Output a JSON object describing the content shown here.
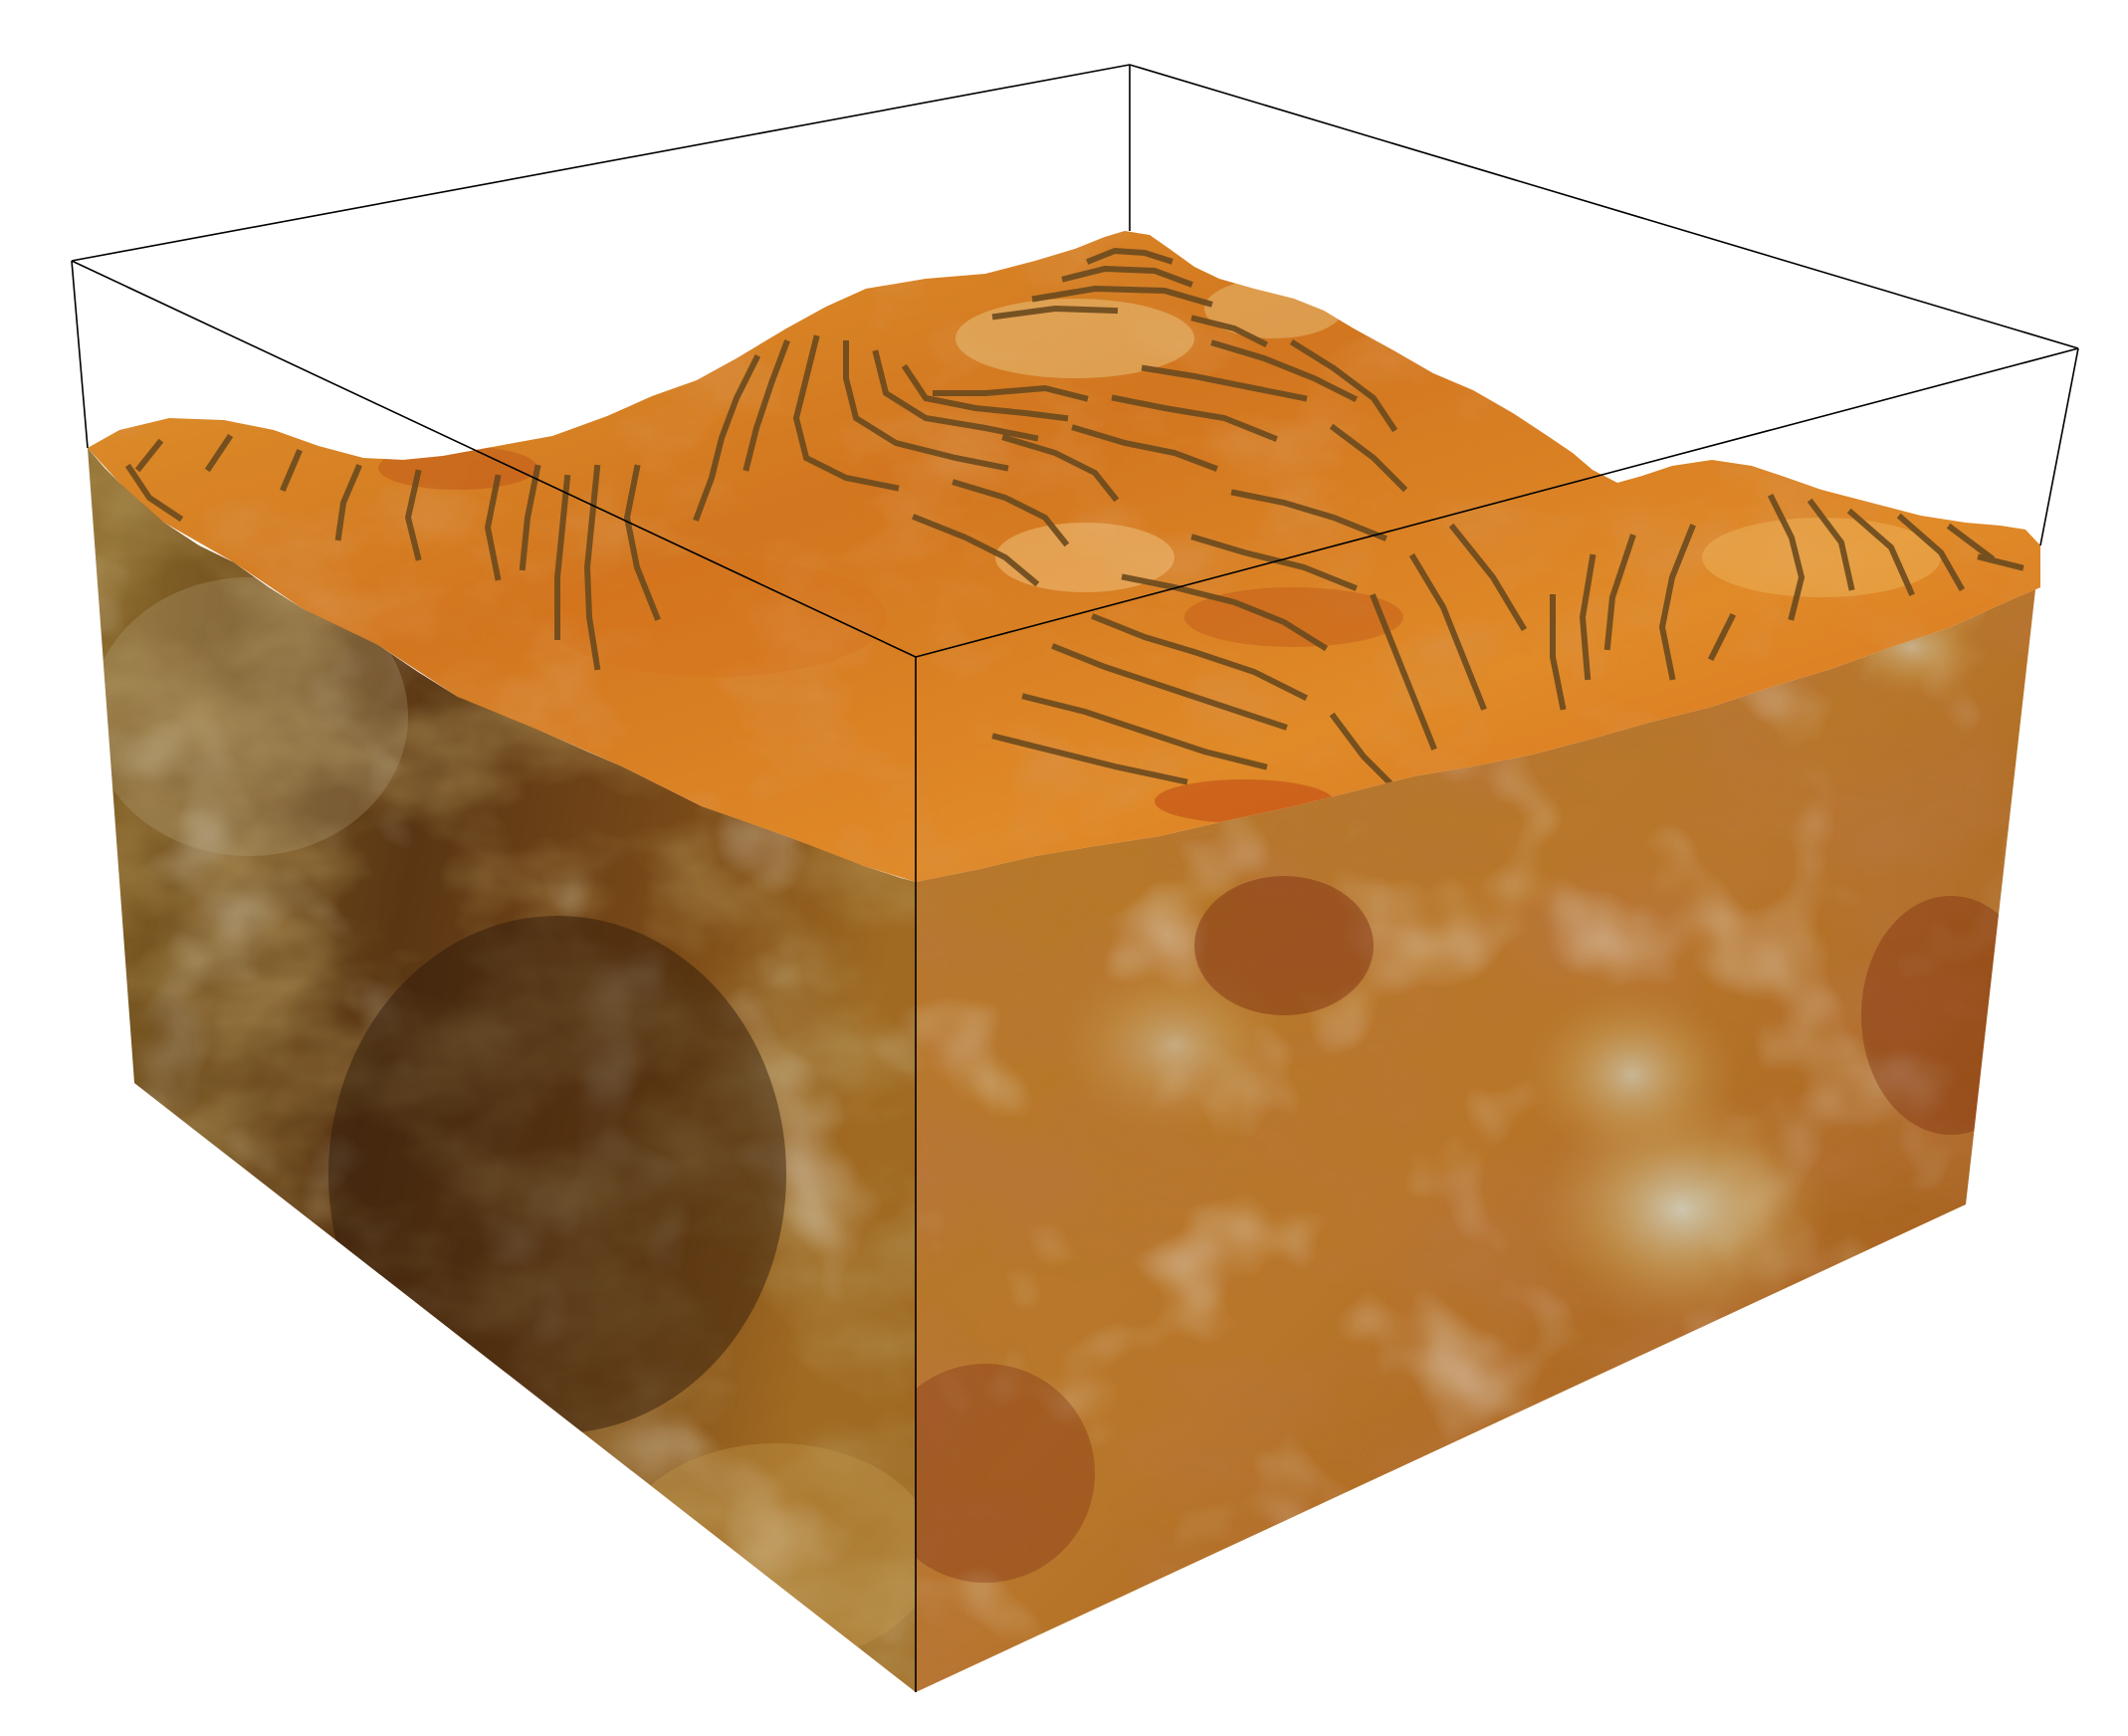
{
  "scene": {
    "subject": "voxel-block-model",
    "colors": {
      "background": "#ffffff",
      "bounding_box_line": "#000000",
      "top_surface_light": "#e89a3a",
      "top_surface_mid": "#d27a22",
      "top_surface_dark": "#b8561a",
      "contour_line": "#6b4a1e",
      "left_face_base": "#8a5a1c",
      "left_face_dark": "#3f2410",
      "right_face_base": "#b6741f",
      "right_face_dark": "#7a3512",
      "highlight_pale": "#c8c0a8"
    }
  }
}
